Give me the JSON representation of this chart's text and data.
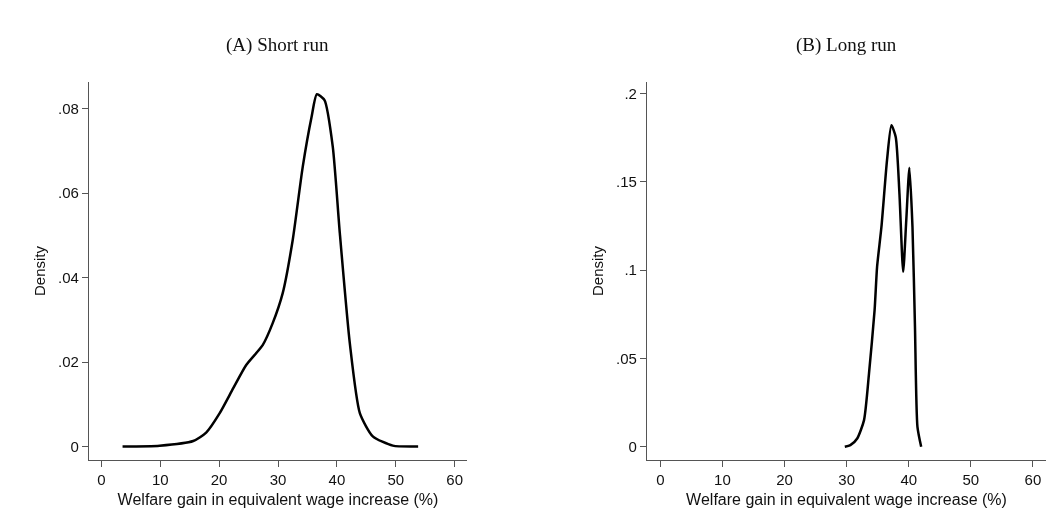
{
  "chart_data": [
    {
      "type": "line",
      "title": "(A) Short run",
      "xlabel": "Welfare gain in equivalent wage increase (%)",
      "ylabel": "Density",
      "marker": "none",
      "line_style": "solid",
      "series": [
        {
          "color": "#000000",
          "x": [
            3.6,
            9.9,
            15.6,
            17.8,
            20.1,
            22.4,
            24.6,
            27.4,
            29.1,
            30.8,
            32.5,
            34.2,
            35.7,
            36.6,
            37.9,
            39.3,
            40.5,
            42.2,
            43.9,
            46.1,
            49.5,
            53.8
          ],
          "values": [
            0,
            0.0002,
            0.0013,
            0.0033,
            0.0079,
            0.0138,
            0.0193,
            0.024,
            0.0292,
            0.0363,
            0.0489,
            0.0662,
            0.078,
            0.0834,
            0.082,
            0.071,
            0.0505,
            0.0244,
            0.0079,
            0.0024,
            0.0002,
            0
          ]
        }
      ],
      "xlim": [
        -2.1,
        62.1
      ],
      "xticks": [
        0,
        10,
        20,
        30,
        40,
        50,
        60
      ],
      "ylim": [
        -0.0032,
        0.0863
      ],
      "yticks": [
        0,
        {
          "value": 0.02,
          "label": ".02"
        },
        {
          "value": 0.04,
          "label": ".04"
        },
        {
          "value": 0.06,
          "label": ".06"
        },
        {
          "value": 0.08,
          "label": ".08"
        }
      ]
    },
    {
      "type": "line",
      "title": "(B) Long run",
      "xlabel": "Welfare gain in equivalent wage increase (%)",
      "ylabel": "Density",
      "marker": "none",
      "line_style": "solid",
      "series": [
        {
          "color": "#000000",
          "x": [
            29.7,
            30.6,
            31.7,
            32.8,
            33.6,
            34.5,
            34.9,
            35.6,
            36.5,
            37.2,
            37.9,
            38.5,
            39.1,
            39.6,
            40.1,
            40.6,
            41.0,
            41.4,
            42.0
          ],
          "values": [
            0,
            0.0009,
            0.0047,
            0.0151,
            0.0415,
            0.0774,
            0.1019,
            0.1245,
            0.1623,
            0.1821,
            0.1755,
            0.1434,
            0.0991,
            0.1283,
            0.1581,
            0.1245,
            0.0679,
            0.0113,
            0
          ]
        }
      ],
      "xlim": [
        -2.15,
        62.1
      ],
      "xticks": [
        0,
        10,
        20,
        30,
        40,
        50,
        60
      ],
      "ylim": [
        -0.0075,
        0.2066
      ],
      "yticks": [
        0,
        {
          "value": 0.05,
          "label": ".05"
        },
        {
          "value": 0.1,
          "label": ".1"
        },
        {
          "value": 0.15,
          "label": ".15"
        },
        {
          "value": 0.2,
          "label": ".2"
        }
      ]
    }
  ]
}
